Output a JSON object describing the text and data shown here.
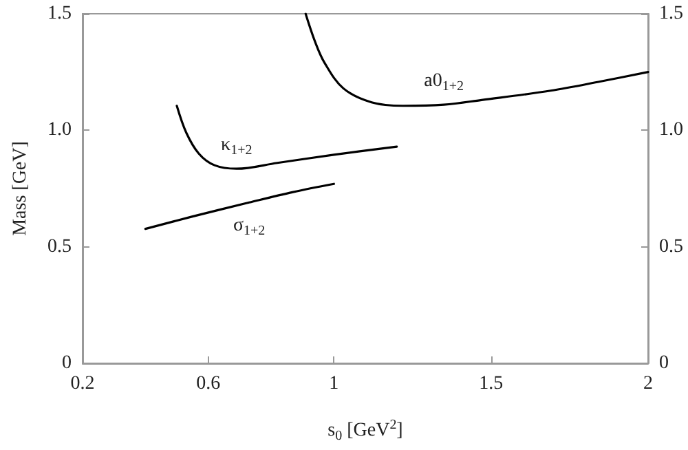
{
  "chart_data": {
    "type": "line",
    "xlabel": "s$_{0}$ [GeV$^{2}$]",
    "ylabel": "Mass [GeV]",
    "xlim": [
      0.2,
      2
    ],
    "xticks": [
      0.2,
      0.6,
      1,
      1.5,
      2
    ],
    "ylim": [
      0,
      1.5
    ],
    "yticks": [
      0,
      0.5,
      {
        "value": 1,
        "label": "1.0"
      },
      1.5
    ],
    "y2lim": [
      0,
      1.5
    ],
    "y2ticks": [
      0,
      0.5,
      {
        "value": 1,
        "label": "1.0"
      },
      1.5
    ],
    "grid": false,
    "marker": "none",
    "line_style": "solid",
    "series": [
      {
        "name": "σ$_{1+2}$",
        "color": "#000000",
        "x": [
          0.4,
          0.55,
          0.73,
          0.87,
          1.0
        ],
        "values": [
          0.577,
          0.63,
          0.69,
          0.735,
          0.77
        ]
      },
      {
        "name": "κ$_{1+2}$",
        "color": "#000000",
        "x": [
          0.5,
          0.53,
          0.57,
          0.62,
          0.69,
          0.82,
          1.0,
          1.2
        ],
        "values": [
          1.105,
          0.99,
          0.9,
          0.85,
          0.835,
          0.86,
          0.895,
          0.93
        ]
      },
      {
        "name": "a0$_{1+2}$",
        "color": "#000000",
        "x": [
          0.91,
          0.94,
          0.97,
          1.03,
          1.12,
          1.22,
          1.35,
          1.47,
          1.69,
          1.85,
          2.0
        ],
        "values": [
          1.5,
          1.38,
          1.29,
          1.18,
          1.12,
          1.105,
          1.11,
          1.13,
          1.17,
          1.21,
          1.25
        ]
      }
    ]
  }
}
